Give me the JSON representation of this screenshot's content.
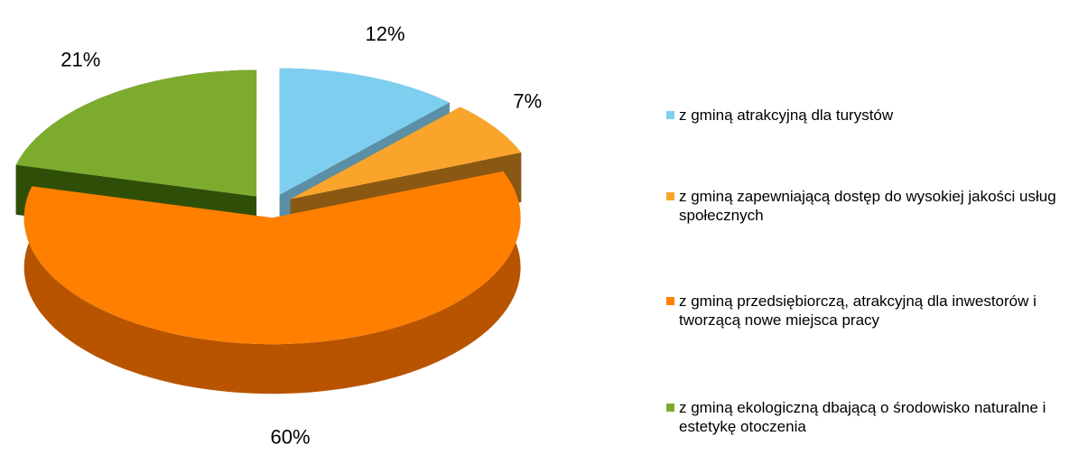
{
  "chart_data": {
    "type": "pie3d",
    "categories": [
      "z gminą atrakcyjną dla turystów",
      "z gminą zapewniającą dostęp do wysokiej jakości usług społecznych",
      "z gminą przedsiębiorczą, atrakcyjną dla inwestorów i tworzącą nowe miejsca pracy",
      "z gminą ekologiczną dbającą o środowisko naturalne i estetykę otoczenia"
    ],
    "values": [
      12,
      7,
      60,
      21
    ],
    "value_labels": [
      "12%",
      "7%",
      "60%",
      "21%"
    ],
    "colors": [
      "#7ecef0",
      "#f9a52c",
      "#ff7f00",
      "#7dab2e"
    ],
    "side_colors": [
      "#5a8fa6",
      "#8a5812",
      "#b85400",
      "#2f4f08"
    ],
    "legend": "right"
  }
}
